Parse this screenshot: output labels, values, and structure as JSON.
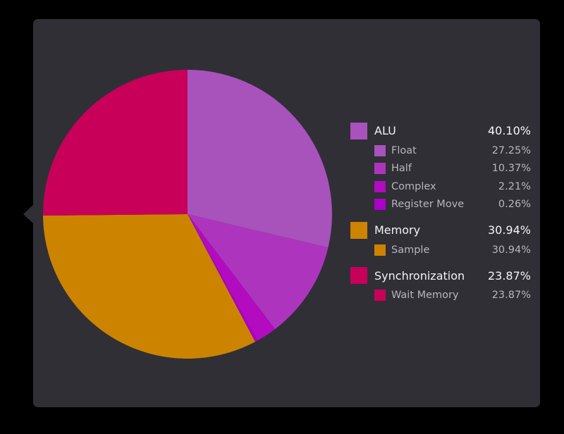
{
  "chart_data": {
    "type": "pie",
    "title": "",
    "legend_position": "right",
    "slices": [
      {
        "label": "Float",
        "value": 27.25,
        "color": "#a852bb"
      },
      {
        "label": "Half",
        "value": 10.37,
        "color": "#ad35bd"
      },
      {
        "label": "Complex",
        "value": 2.21,
        "color": "#b20bc0"
      },
      {
        "label": "Register Move",
        "value": 0.26,
        "color": "#aa00c8"
      },
      {
        "label": "Sample",
        "value": 30.94,
        "color": "#cc8400"
      },
      {
        "label": "Wait Memory",
        "value": 23.87,
        "color": "#c8005a"
      }
    ],
    "legend": [
      {
        "label": "ALU",
        "percent": "40.10%",
        "color": "#a852bb",
        "children": [
          {
            "label": "Float",
            "percent": "27.25%",
            "color": "#a852bb"
          },
          {
            "label": "Half",
            "percent": "10.37%",
            "color": "#ad35bd"
          },
          {
            "label": "Complex",
            "percent": "2.21%",
            "color": "#b20bc0"
          },
          {
            "label": "Register Move",
            "percent": "0.26%",
            "color": "#aa00c8"
          }
        ]
      },
      {
        "label": "Memory",
        "percent": "30.94%",
        "color": "#cc8400",
        "children": [
          {
            "label": "Sample",
            "percent": "30.94%",
            "color": "#cc8400"
          }
        ]
      },
      {
        "label": "Synchronization",
        "percent": "23.87%",
        "color": "#c8005a",
        "children": [
          {
            "label": "Wait Memory",
            "percent": "23.87%",
            "color": "#c8005a"
          }
        ]
      }
    ]
  }
}
